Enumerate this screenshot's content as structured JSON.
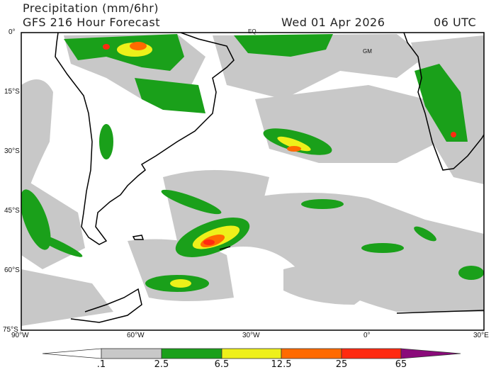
{
  "header": {
    "title": "Precipitation (mm/6hr)",
    "subtitle": "GFS 216 Hour Forecast",
    "date": "Wed 01 Apr 2026",
    "time": "06 UTC"
  },
  "map": {
    "lat_labels": [
      "0°",
      "15°S",
      "30°S",
      "45°S",
      "60°S",
      "75°S"
    ],
    "lon_labels": [
      "90°W",
      "60°W",
      "30°W",
      "0°",
      "30°E"
    ],
    "annotations": [
      "EQ",
      "GM"
    ]
  },
  "legend": {
    "levels": [
      ".1",
      "2.5",
      "6.5",
      "12.5",
      "25",
      "65"
    ],
    "colors": [
      "#ffffff",
      "#c8c8c8",
      "#1aa01a",
      "#eef01a",
      "#ff6a00",
      "#ff2a10",
      "#8a0a7a"
    ]
  }
}
